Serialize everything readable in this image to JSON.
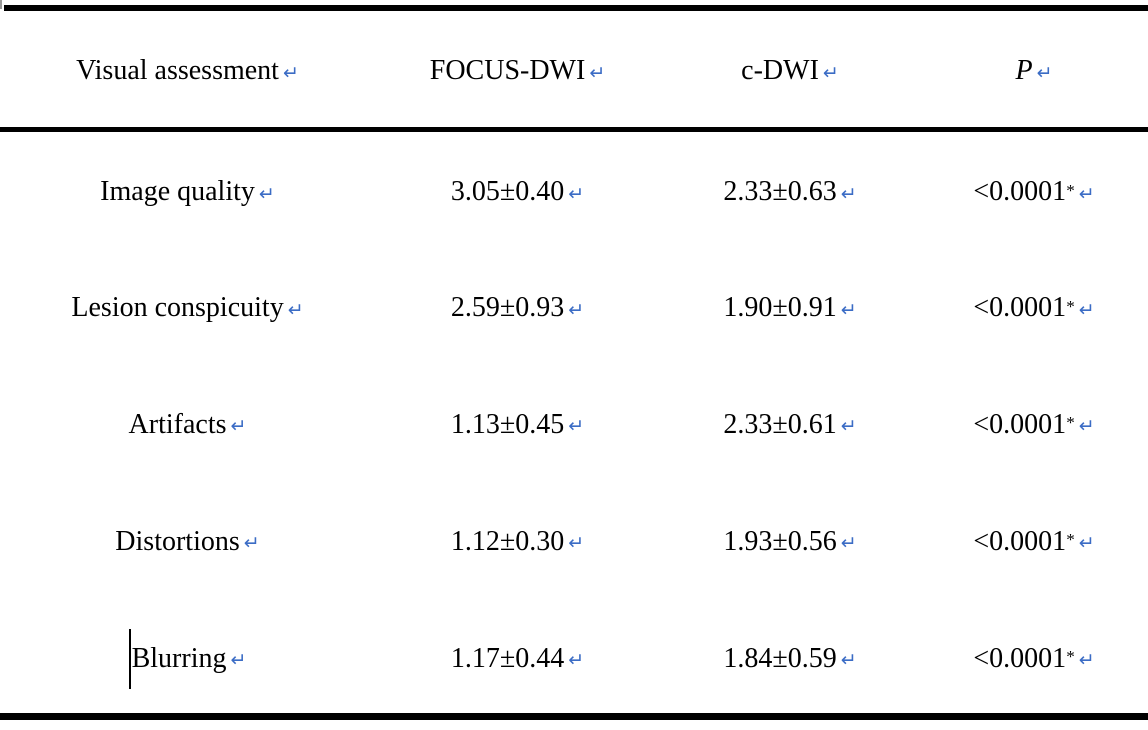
{
  "mark": {
    "glyph": "↵"
  },
  "colors": {
    "mark_blue": "#3b6cc5",
    "text": "#000000",
    "border": "#000000",
    "background": "#ffffff"
  },
  "headers": {
    "assessment": "Visual assessment",
    "focus_dwi": "FOCUS-DWI",
    "c_dwi": "c-DWI",
    "p": "P"
  },
  "rows": [
    {
      "assessment": "Image quality",
      "focus_dwi": "3.05±0.40",
      "c_dwi": "2.33±0.63",
      "p": "<0.0001",
      "p_star": "*"
    },
    {
      "assessment": "Lesion conspicuity",
      "focus_dwi": "2.59±0.93",
      "c_dwi": "1.90±0.91",
      "p": "<0.0001",
      "p_star": "*"
    },
    {
      "assessment": "Artifacts",
      "focus_dwi": "1.13±0.45",
      "c_dwi": "2.33±0.61",
      "p": "<0.0001",
      "p_star": "*"
    },
    {
      "assessment": "Distortions",
      "focus_dwi": "1.12±0.30",
      "c_dwi": "1.93±0.56",
      "p": "<0.0001",
      "p_star": "*"
    },
    {
      "assessment": "Blurring",
      "focus_dwi": "1.17±0.44",
      "c_dwi": "1.84±0.59",
      "p": "<0.0001",
      "p_star": "*"
    }
  ]
}
